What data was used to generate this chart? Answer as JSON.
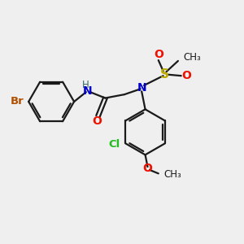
{
  "background_color": "#efefef",
  "bond_color": "#1a1a1a",
  "atom_colors": {
    "Br": "#b05000",
    "H": "#336666",
    "N": "#0000cc",
    "O": "#ee1100",
    "S": "#bbaa00",
    "Cl": "#22bb22"
  },
  "figsize": [
    3.0,
    3.0
  ],
  "dpi": 100,
  "xlim": [
    0,
    10
  ],
  "ylim": [
    0,
    10
  ]
}
